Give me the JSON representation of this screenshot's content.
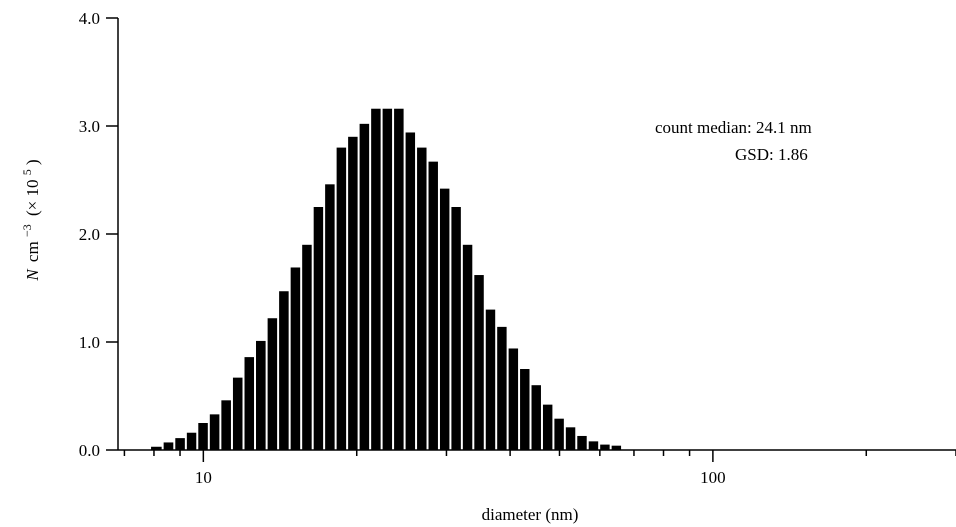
{
  "chart_data": {
    "type": "bar",
    "xlabel": "diameter (nm)",
    "ylabel": {
      "italic": "N",
      "unit": "cm",
      "unit_exp": "−3",
      "factor_open": "(× 10",
      "factor_exp": "5",
      "factor_close": ")"
    },
    "x_scale": "log",
    "xlim": [
      6.8,
      300
    ],
    "ylim": [
      0,
      4.0
    ],
    "y_ticks": [
      "0.0",
      "1.0",
      "2.0",
      "3.0",
      "4.0"
    ],
    "x_tick_labels": [
      {
        "value": 10,
        "label": "10"
      },
      {
        "value": 100,
        "label": "100"
      }
    ],
    "x_minor_ticks": [
      7,
      8,
      9,
      20,
      30,
      40,
      50,
      60,
      70,
      80,
      90,
      200,
      300
    ],
    "bar_edges": [
      7.86,
      8.32,
      8.77,
      9.24,
      9.73,
      10.25,
      10.8,
      11.38,
      11.99,
      12.63,
      13.31,
      14.02,
      14.77,
      15.56,
      16.39,
      17.26,
      18.18,
      19.15,
      20.17,
      21.25,
      22.38,
      23.57,
      24.83,
      26.15,
      27.54,
      29.0,
      30.54,
      32.16,
      33.87,
      35.67,
      37.56,
      39.55,
      41.65,
      43.86,
      46.19,
      48.64,
      51.22,
      53.94,
      56.8,
      59.82,
      63.0,
      66.34,
      69.87,
      73.58,
      77.49,
      81.6,
      85.93,
      90.5,
      95.3,
      100.36,
      105.69,
      111.3,
      117.21,
      123.43,
      129.98,
      136.88,
      144.15,
      151.8,
      159.86,
      168.34
    ],
    "values": [
      0.03,
      0.07,
      0.11,
      0.16,
      0.25,
      0.33,
      0.46,
      0.67,
      0.86,
      1.01,
      1.22,
      1.47,
      1.69,
      1.9,
      2.25,
      2.46,
      2.8,
      2.9,
      3.02,
      3.16,
      3.16,
      3.16,
      2.94,
      2.8,
      2.67,
      2.42,
      2.25,
      1.9,
      1.62,
      1.3,
      1.14,
      0.94,
      0.75,
      0.6,
      0.42,
      0.29,
      0.21,
      0.13,
      0.08,
      0.05,
      0.04
    ],
    "first_bar_index": 0,
    "annotations": [
      "count median: 24.1 nm",
      "GSD: 1.86"
    ],
    "grid": false,
    "bar_color": "#000000"
  }
}
